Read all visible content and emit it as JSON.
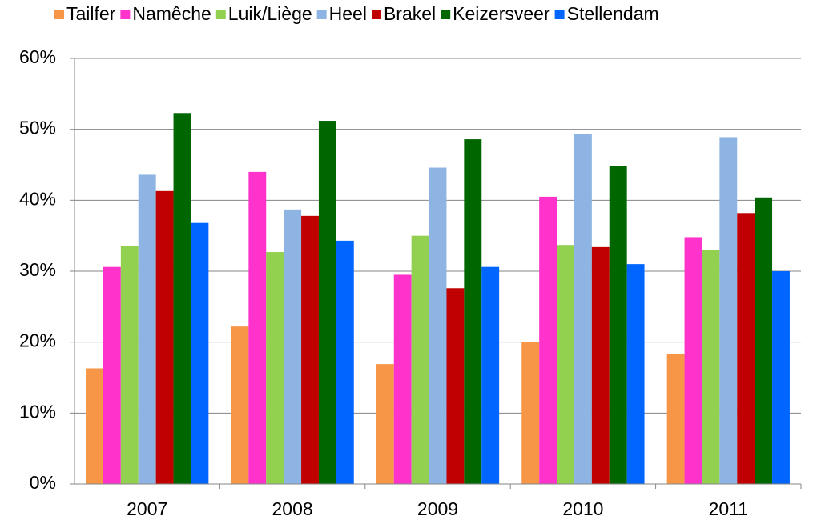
{
  "chart_data": {
    "type": "bar",
    "categories": [
      "2007",
      "2008",
      "2009",
      "2010",
      "2011"
    ],
    "series": [
      {
        "name": "Tailfer",
        "color": "#f79646",
        "values": [
          16.3,
          22.2,
          16.9,
          20.0,
          18.3
        ]
      },
      {
        "name": "Namêche",
        "color": "#ff33cc",
        "values": [
          30.6,
          44.0,
          29.5,
          40.5,
          34.8
        ]
      },
      {
        "name": "Luik/Liège",
        "color": "#92d050",
        "values": [
          33.6,
          32.7,
          35.0,
          33.7,
          33.0
        ]
      },
      {
        "name": "Heel",
        "color": "#8db4e2",
        "values": [
          43.6,
          38.7,
          44.6,
          49.3,
          48.9
        ]
      },
      {
        "name": "Brakel",
        "color": "#c00000",
        "values": [
          41.3,
          37.8,
          27.6,
          33.4,
          38.2
        ]
      },
      {
        "name": "Keizersveer",
        "color": "#006600",
        "values": [
          52.3,
          51.2,
          48.6,
          44.8,
          40.4
        ]
      },
      {
        "name": "Stellendam",
        "color": "#0066ff",
        "values": [
          36.8,
          34.3,
          30.6,
          31.0,
          30.0
        ]
      }
    ],
    "ylim": [
      0,
      60
    ],
    "yticks": [
      {
        "value": 0,
        "label": "0%"
      },
      {
        "value": 10,
        "label": "10%"
      },
      {
        "value": 20,
        "label": "20%"
      },
      {
        "value": 30,
        "label": "30%"
      },
      {
        "value": 40,
        "label": "40%"
      },
      {
        "value": 50,
        "label": "50%"
      },
      {
        "value": 60,
        "label": "60%"
      }
    ],
    "grid": true,
    "legend": "top"
  }
}
